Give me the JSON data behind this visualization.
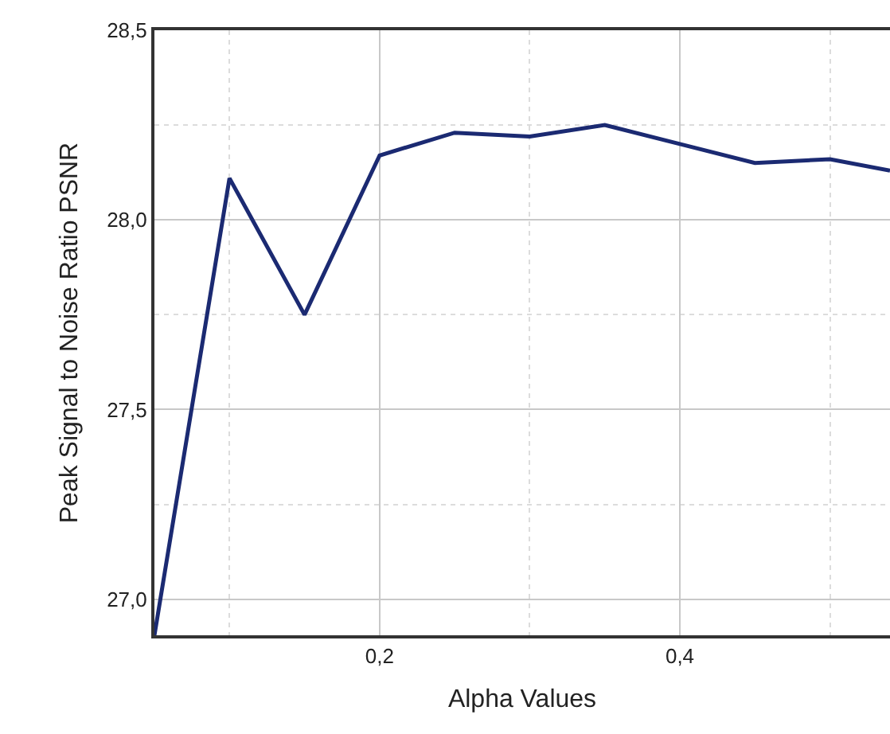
{
  "chart_data": {
    "type": "line",
    "xlabel": "Alpha Values",
    "ylabel": "Peak Signal to Noise Ratio PSNR",
    "x": [
      0.05,
      0.1,
      0.15,
      0.2,
      0.25,
      0.3,
      0.35,
      0.4,
      0.45,
      0.5,
      0.54
    ],
    "series": [
      {
        "color": "#1b2a72",
        "values": [
          26.905,
          28.11,
          27.75,
          28.17,
          28.23,
          28.22,
          28.25,
          28.2,
          28.15,
          28.16,
          28.13
        ]
      }
    ],
    "xlim": [
      0.05,
      0.54
    ],
    "xticks": [
      {
        "value": 0.1,
        "label": null
      },
      {
        "value": 0.2,
        "label": "0,2"
      },
      {
        "value": 0.3,
        "label": null
      },
      {
        "value": 0.4,
        "label": "0,4"
      },
      {
        "value": 0.5,
        "label": null
      }
    ],
    "ylim": [
      26.905,
      28.5
    ],
    "yticks": [
      {
        "value": 27.0,
        "label": "27,0"
      },
      {
        "value": 27.25,
        "label": null
      },
      {
        "value": 27.5,
        "label": "27,5"
      },
      {
        "value": 27.75,
        "label": null
      },
      {
        "value": 28.0,
        "label": "28,0"
      },
      {
        "value": 28.25,
        "label": null
      },
      {
        "value": 28.5,
        "label": "28,5"
      }
    ],
    "grid": true,
    "marker": "none",
    "line_style": "solid"
  }
}
